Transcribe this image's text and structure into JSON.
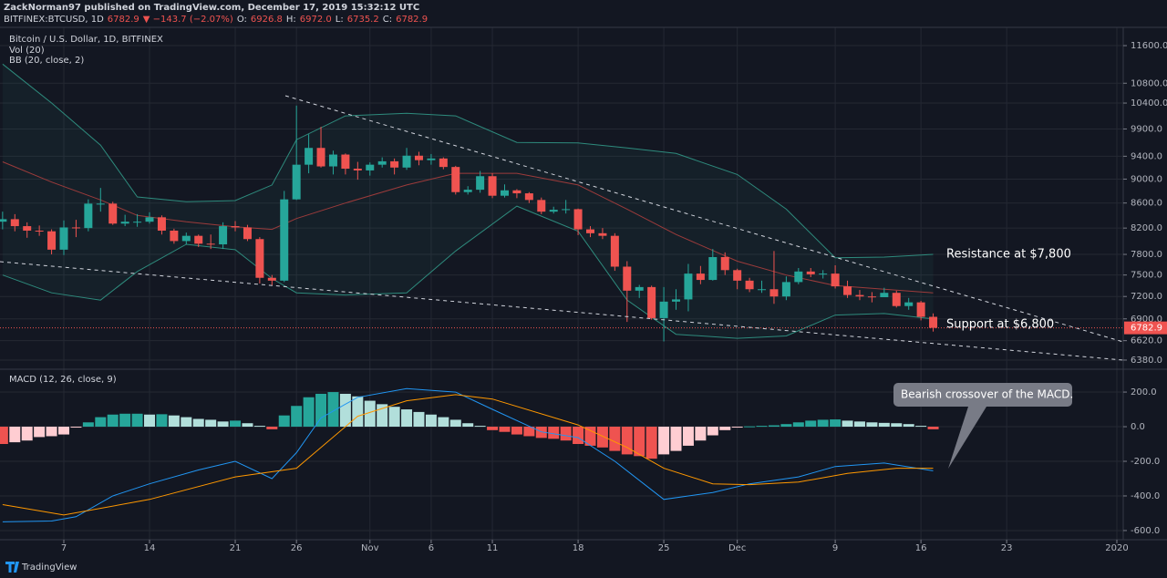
{
  "header": {
    "publisher": "ZackNorman97 published on TradingView.com, December 17, 2019 15:32:12 UTC",
    "quote": [
      "BITFINEX:BTCUSD, 1D",
      "6782.9",
      "▼ −143.7 (−2.07%)",
      "O:",
      "6926.8",
      "H:",
      "6972.0",
      "L:",
      "6735.2",
      "C:",
      "6782.9"
    ]
  },
  "chart_data": [
    {
      "type": "candlestick",
      "title": "Bitcoin / U.S. Dollar, 1D, BITFINEX",
      "indicators": [
        "Vol (20)",
        "BB (20, close, 2)"
      ],
      "log": true,
      "grid": true,
      "up_color": "#26a69a",
      "down_color": "#ef5350",
      "xlim": [
        "2019-10-02",
        "2020-01-01"
      ],
      "ylim": [
        6270,
        12010
      ],
      "yticks": [
        {
          "value": 11600,
          "label": "11600.0"
        },
        {
          "value": 10800,
          "label": "10800.0"
        },
        {
          "value": 10400,
          "label": "10400.0"
        },
        {
          "value": 9900,
          "label": "9900.0"
        },
        {
          "value": 9400,
          "label": "9400.0"
        },
        {
          "value": 9000,
          "label": "9000.0"
        },
        {
          "value": 8600,
          "label": "8600.0"
        },
        {
          "value": 8200,
          "label": "8200.0"
        },
        {
          "value": 7800,
          "label": "7800.0"
        },
        {
          "value": 7500,
          "label": "7500.0"
        },
        {
          "value": 7200,
          "label": "7200.0"
        },
        {
          "value": 6900,
          "label": "6900.0"
        },
        {
          "value": 6620,
          "label": "6620.0"
        },
        {
          "value": 6380,
          "label": "6380.0"
        }
      ],
      "x": [
        "2019-10-02",
        "2019-10-03",
        "2019-10-04",
        "2019-10-05",
        "2019-10-06",
        "2019-10-07",
        "2019-10-08",
        "2019-10-09",
        "2019-10-10",
        "2019-10-11",
        "2019-10-12",
        "2019-10-13",
        "2019-10-14",
        "2019-10-15",
        "2019-10-16",
        "2019-10-17",
        "2019-10-18",
        "2019-10-19",
        "2019-10-20",
        "2019-10-21",
        "2019-10-22",
        "2019-10-23",
        "2019-10-24",
        "2019-10-25",
        "2019-10-26",
        "2019-10-27",
        "2019-10-28",
        "2019-10-29",
        "2019-10-30",
        "2019-10-31",
        "2019-11-01",
        "2019-11-02",
        "2019-11-03",
        "2019-11-04",
        "2019-11-05",
        "2019-11-06",
        "2019-11-07",
        "2019-11-08",
        "2019-11-09",
        "2019-11-10",
        "2019-11-11",
        "2019-11-12",
        "2019-11-13",
        "2019-11-14",
        "2019-11-15",
        "2019-11-16",
        "2019-11-17",
        "2019-11-18",
        "2019-11-19",
        "2019-11-20",
        "2019-11-21",
        "2019-11-22",
        "2019-11-23",
        "2019-11-24",
        "2019-11-25",
        "2019-11-26",
        "2019-11-27",
        "2019-11-28",
        "2019-11-29",
        "2019-11-30",
        "2019-12-01",
        "2019-12-02",
        "2019-12-03",
        "2019-12-04",
        "2019-12-05",
        "2019-12-06",
        "2019-12-07",
        "2019-12-08",
        "2019-12-09",
        "2019-12-10",
        "2019-12-11",
        "2019-12-12",
        "2019-12-13",
        "2019-12-14",
        "2019-12-15",
        "2019-12-16",
        "2019-12-17"
      ],
      "open": [
        8300,
        8340,
        8230,
        8160,
        8150,
        7870,
        8210,
        8200,
        8590,
        8590,
        8270,
        8300,
        8300,
        8370,
        8160,
        8000,
        8080,
        7960,
        7950,
        8230,
        8210,
        8030,
        7460,
        7420,
        8660,
        9250,
        9550,
        9220,
        9430,
        9180,
        9150,
        9250,
        9310,
        9200,
        9410,
        9330,
        9360,
        9210,
        8780,
        8820,
        9050,
        8720,
        8810,
        8760,
        8650,
        8460,
        8490,
        8500,
        8180,
        8120,
        8080,
        7620,
        7280,
        7330,
        6910,
        7130,
        7160,
        7520,
        7430,
        7760,
        7570,
        7420,
        7300,
        7300,
        7200,
        7400,
        7550,
        7510,
        7520,
        7340,
        7220,
        7200,
        7190,
        7250,
        7070,
        7120,
        6926.8
      ],
      "high": [
        8460,
        8420,
        8290,
        8240,
        8180,
        8320,
        8330,
        8660,
        8850,
        8620,
        8410,
        8420,
        8450,
        8400,
        8190,
        8130,
        8100,
        8100,
        8290,
        8310,
        8250,
        8060,
        7500,
        8800,
        10350,
        9800,
        9940,
        9500,
        9450,
        9300,
        9290,
        9380,
        9360,
        9550,
        9480,
        9440,
        9380,
        9230,
        8880,
        9140,
        9100,
        8910,
        8830,
        8780,
        8690,
        8540,
        8650,
        8510,
        8230,
        8200,
        8120,
        7700,
        7360,
        7350,
        7330,
        7300,
        7660,
        7630,
        7880,
        7830,
        7590,
        7460,
        7420,
        7850,
        7480,
        7600,
        7600,
        7570,
        7640,
        7420,
        7290,
        7260,
        7320,
        7280,
        7180,
        7140,
        6972
      ],
      "low": [
        8180,
        8150,
        8050,
        8080,
        7800,
        7790,
        8060,
        8150,
        8460,
        8250,
        8230,
        8220,
        8270,
        8100,
        7960,
        7950,
        7910,
        7880,
        7880,
        8150,
        8000,
        7380,
        7350,
        7400,
        8650,
        9100,
        9200,
        9080,
        9080,
        8990,
        9060,
        9200,
        9080,
        9160,
        9240,
        9250,
        9170,
        8740,
        8740,
        8770,
        8680,
        8690,
        8680,
        8600,
        8420,
        8430,
        8430,
        8090,
        8060,
        8030,
        7560,
        6860,
        7180,
        6890,
        6610,
        7020,
        7000,
        7370,
        7420,
        7500,
        7300,
        7260,
        7250,
        7100,
        7150,
        7370,
        7470,
        7450,
        7310,
        7180,
        7150,
        7120,
        7200,
        7050,
        7020,
        6880,
        6735.2
      ],
      "close": [
        8340,
        8230,
        8160,
        8150,
        7870,
        8210,
        8200,
        8590,
        8590,
        8270,
        8300,
        8300,
        8370,
        8160,
        8000,
        8080,
        7960,
        7950,
        8230,
        8210,
        8030,
        7460,
        7420,
        8660,
        9250,
        9550,
        9220,
        9430,
        9180,
        9150,
        9250,
        9310,
        9200,
        9410,
        9330,
        9360,
        9210,
        8780,
        8820,
        9050,
        8720,
        8810,
        8760,
        8650,
        8460,
        8490,
        8500,
        8180,
        8120,
        8080,
        7620,
        7280,
        7330,
        6910,
        7130,
        7160,
        7520,
        7430,
        7760,
        7570,
        7420,
        7300,
        7300,
        7200,
        7400,
        7550,
        7510,
        7520,
        7340,
        7220,
        7200,
        7190,
        7250,
        7070,
        7120,
        6926.8,
        6782.9
      ],
      "bands": {
        "x": [
          "2019-10-02",
          "2019-10-06",
          "2019-10-10",
          "2019-10-13",
          "2019-10-17",
          "2019-10-21",
          "2019-10-24",
          "2019-10-26",
          "2019-10-30",
          "2019-11-04",
          "2019-11-08",
          "2019-11-13",
          "2019-11-18",
          "2019-11-22",
          "2019-11-26",
          "2019-12-01",
          "2019-12-05",
          "2019-12-09",
          "2019-12-13",
          "2019-12-17"
        ],
        "upper": [
          11200,
          10400,
          9600,
          8700,
          8620,
          8640,
          8900,
          9700,
          10150,
          10200,
          10150,
          9650,
          9640,
          9550,
          9450,
          9080,
          8500,
          7750,
          7760,
          7800
        ],
        "middle": [
          9300,
          8950,
          8650,
          8400,
          8300,
          8220,
          8180,
          8350,
          8600,
          8900,
          9100,
          9100,
          8900,
          8500,
          8100,
          7700,
          7500,
          7350,
          7300,
          7250
        ],
        "lower": [
          7500,
          7250,
          7150,
          7550,
          7950,
          7870,
          7450,
          7250,
          7220,
          7250,
          7850,
          8550,
          8150,
          7150,
          6700,
          6650,
          6680,
          6950,
          6970,
          6900
        ],
        "band_color": "#2e8b7d",
        "middle_color": "#9c3b3b"
      },
      "last_price": 6782.9,
      "annotations": [
        "Resistance at $7,800",
        "Support at $6,800"
      ]
    },
    {
      "type": "macd",
      "title": "MACD (12, 26, close, 9)",
      "grid": true,
      "xlim": [
        "2019-10-02",
        "2020-01-01"
      ],
      "xticks": [
        {
          "value": "2019-10-07",
          "label": "7"
        },
        {
          "value": "2019-10-14",
          "label": "14"
        },
        {
          "value": "2019-10-21",
          "label": "21"
        },
        {
          "value": "2019-10-26",
          "label": "26"
        },
        {
          "value": "2019-11-01",
          "label": "Nov"
        },
        {
          "value": "2019-11-06",
          "label": "6"
        },
        {
          "value": "2019-11-11",
          "label": "11"
        },
        {
          "value": "2019-11-18",
          "label": "18"
        },
        {
          "value": "2019-11-25",
          "label": "25"
        },
        {
          "value": "2019-12-01",
          "label": "Dec"
        },
        {
          "value": "2019-12-09",
          "label": "9"
        },
        {
          "value": "2019-12-16",
          "label": "16"
        },
        {
          "value": "2019-12-23",
          "label": "23"
        },
        {
          "value": "2020-01-01",
          "label": "2020"
        }
      ],
      "ylim": [
        -653,
        332
      ],
      "yticks": [
        {
          "value": 200,
          "label": "200.0"
        },
        {
          "value": 0,
          "label": "0.0"
        },
        {
          "value": -200,
          "label": "-200.0"
        },
        {
          "value": -400,
          "label": "-400.0"
        },
        {
          "value": -600,
          "label": "-600.0"
        }
      ],
      "histogram": [
        -100,
        -90,
        -80,
        -60,
        -55,
        -45,
        -5,
        25,
        55,
        70,
        75,
        75,
        70,
        72,
        65,
        55,
        45,
        40,
        30,
        35,
        20,
        5,
        -15,
        65,
        120,
        170,
        190,
        200,
        190,
        175,
        150,
        130,
        115,
        100,
        85,
        70,
        55,
        40,
        20,
        5,
        -20,
        -30,
        -45,
        -55,
        -65,
        -70,
        -80,
        -100,
        -110,
        -120,
        -140,
        -160,
        -170,
        -185,
        -160,
        -140,
        -110,
        -80,
        -50,
        -20,
        -5,
        2,
        5,
        8,
        15,
        25,
        35,
        40,
        42,
        35,
        30,
        25,
        22,
        20,
        15,
        5,
        -15
      ],
      "histogram_colors": {
        "pos_up": "#26a69a",
        "pos_down": "#b2dfdb",
        "neg_down": "#ef5350",
        "neg_up": "#ffcdd2"
      },
      "series": [
        {
          "color": "#2196f3",
          "x": [
            "2019-10-02",
            "2019-10-06",
            "2019-10-08",
            "2019-10-11",
            "2019-10-14",
            "2019-10-18",
            "2019-10-21",
            "2019-10-24",
            "2019-10-26",
            "2019-10-28",
            "2019-10-31",
            "2019-11-04",
            "2019-11-08",
            "2019-11-11",
            "2019-11-15",
            "2019-11-18",
            "2019-11-21",
            "2019-11-25",
            "2019-11-29",
            "2019-12-02",
            "2019-12-06",
            "2019-12-09",
            "2019-12-13",
            "2019-12-17"
          ],
          "values": [
            -550,
            -545,
            -520,
            -400,
            -330,
            -250,
            -200,
            -300,
            -150,
            50,
            170,
            220,
            200,
            100,
            -30,
            -63,
            -200,
            -420,
            -380,
            -330,
            -290,
            -230,
            -210,
            -255
          ]
        },
        {
          "color": "#ff9800",
          "x": [
            "2019-10-02",
            "2019-10-07",
            "2019-10-14",
            "2019-10-21",
            "2019-10-26",
            "2019-10-31",
            "2019-11-04",
            "2019-11-08",
            "2019-11-11",
            "2019-11-18",
            "2019-11-22",
            "2019-11-25",
            "2019-11-29",
            "2019-12-02",
            "2019-12-06",
            "2019-12-10",
            "2019-12-14",
            "2019-12-17"
          ],
          "values": [
            -450,
            -510,
            -420,
            -290,
            -240,
            60,
            150,
            185,
            160,
            10,
            -120,
            -240,
            -330,
            -335,
            -320,
            -270,
            -240,
            -240
          ]
        }
      ],
      "annotation": "Bearish crossover of the MACD."
    }
  ],
  "footer": "TradingView"
}
